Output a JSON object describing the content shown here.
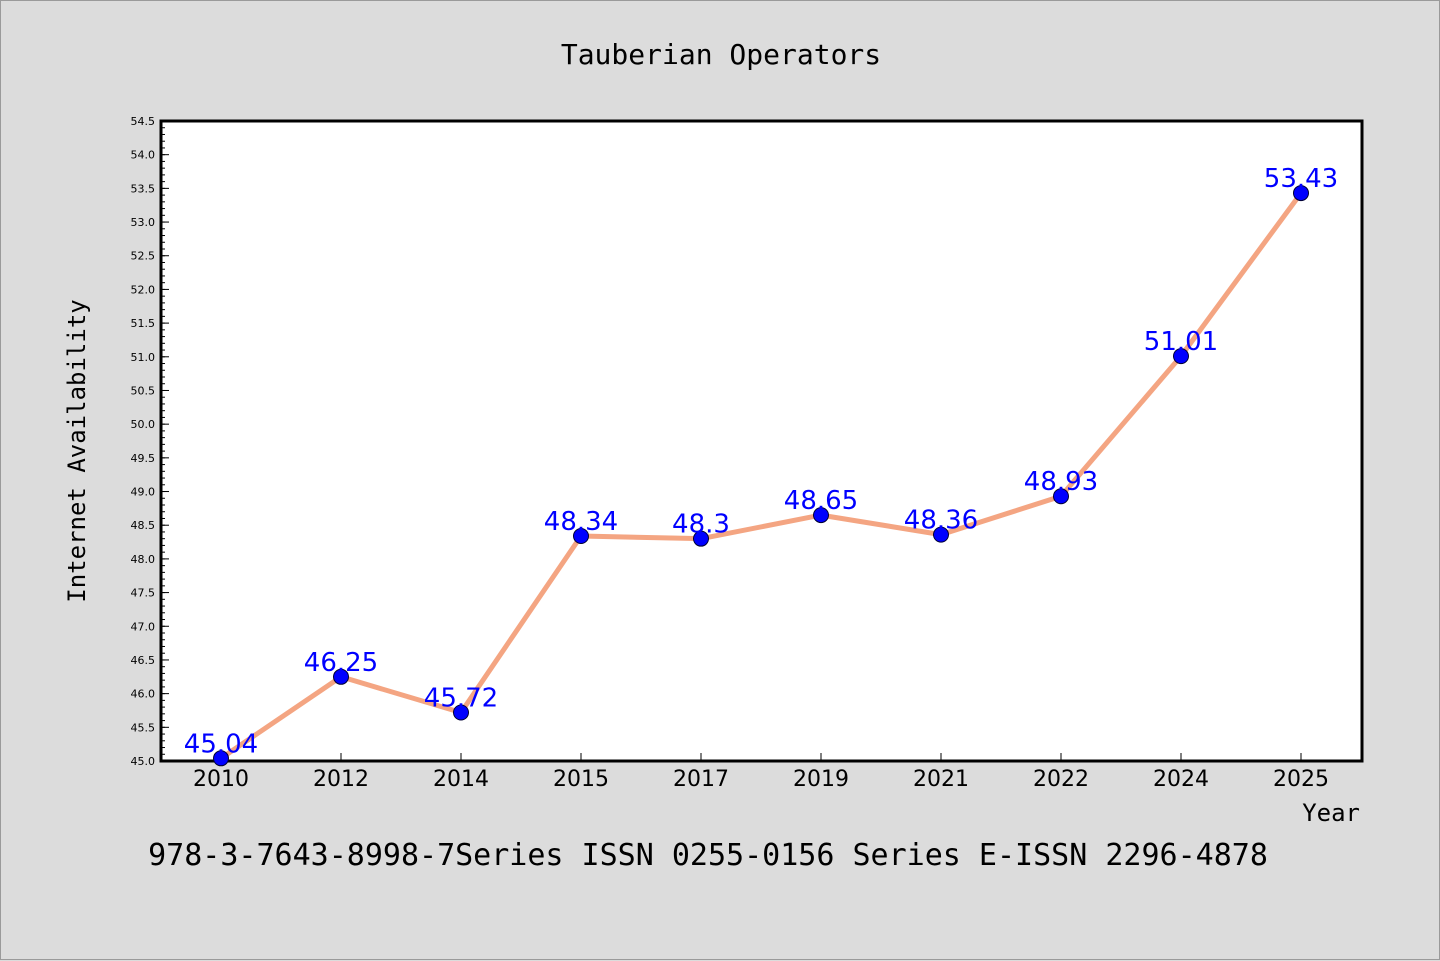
{
  "chart_data": {
    "type": "line",
    "title": "Tauberian Operators",
    "xlabel": "Year",
    "ylabel": "Internet Availability",
    "footer": "978-3-7643-8998-7Series ISSN 0255-0156 Series E-ISSN 2296-4878",
    "categories": [
      "2010",
      "2012",
      "2014",
      "2015",
      "2017",
      "2019",
      "2021",
      "2022",
      "2024",
      "2025"
    ],
    "values": [
      45.04,
      46.25,
      45.72,
      48.34,
      48.3,
      48.65,
      48.36,
      48.93,
      51.01,
      53.43
    ],
    "data_labels": [
      "45.04",
      "46.25",
      "45.72",
      "48.34",
      "48.3",
      "48.65",
      "48.36",
      "48.93",
      "51.01",
      "53.43"
    ],
    "yticks": [
      "45.0",
      "45.5",
      "46.0",
      "46.5",
      "47.0",
      "47.5",
      "48.0",
      "48.5",
      "49.0",
      "49.5",
      "50.0",
      "50.5",
      "51.0",
      "51.5",
      "52.0",
      "52.5",
      "53.0",
      "53.5",
      "54.0",
      "54.5"
    ],
    "ylim": [
      45.0,
      54.5
    ],
    "grid": false,
    "colors": {
      "line": "#f4a582",
      "marker": "#0000ff",
      "label": "#0000ff",
      "background": "#dcdcdc",
      "plot_background": "#ffffff"
    }
  }
}
